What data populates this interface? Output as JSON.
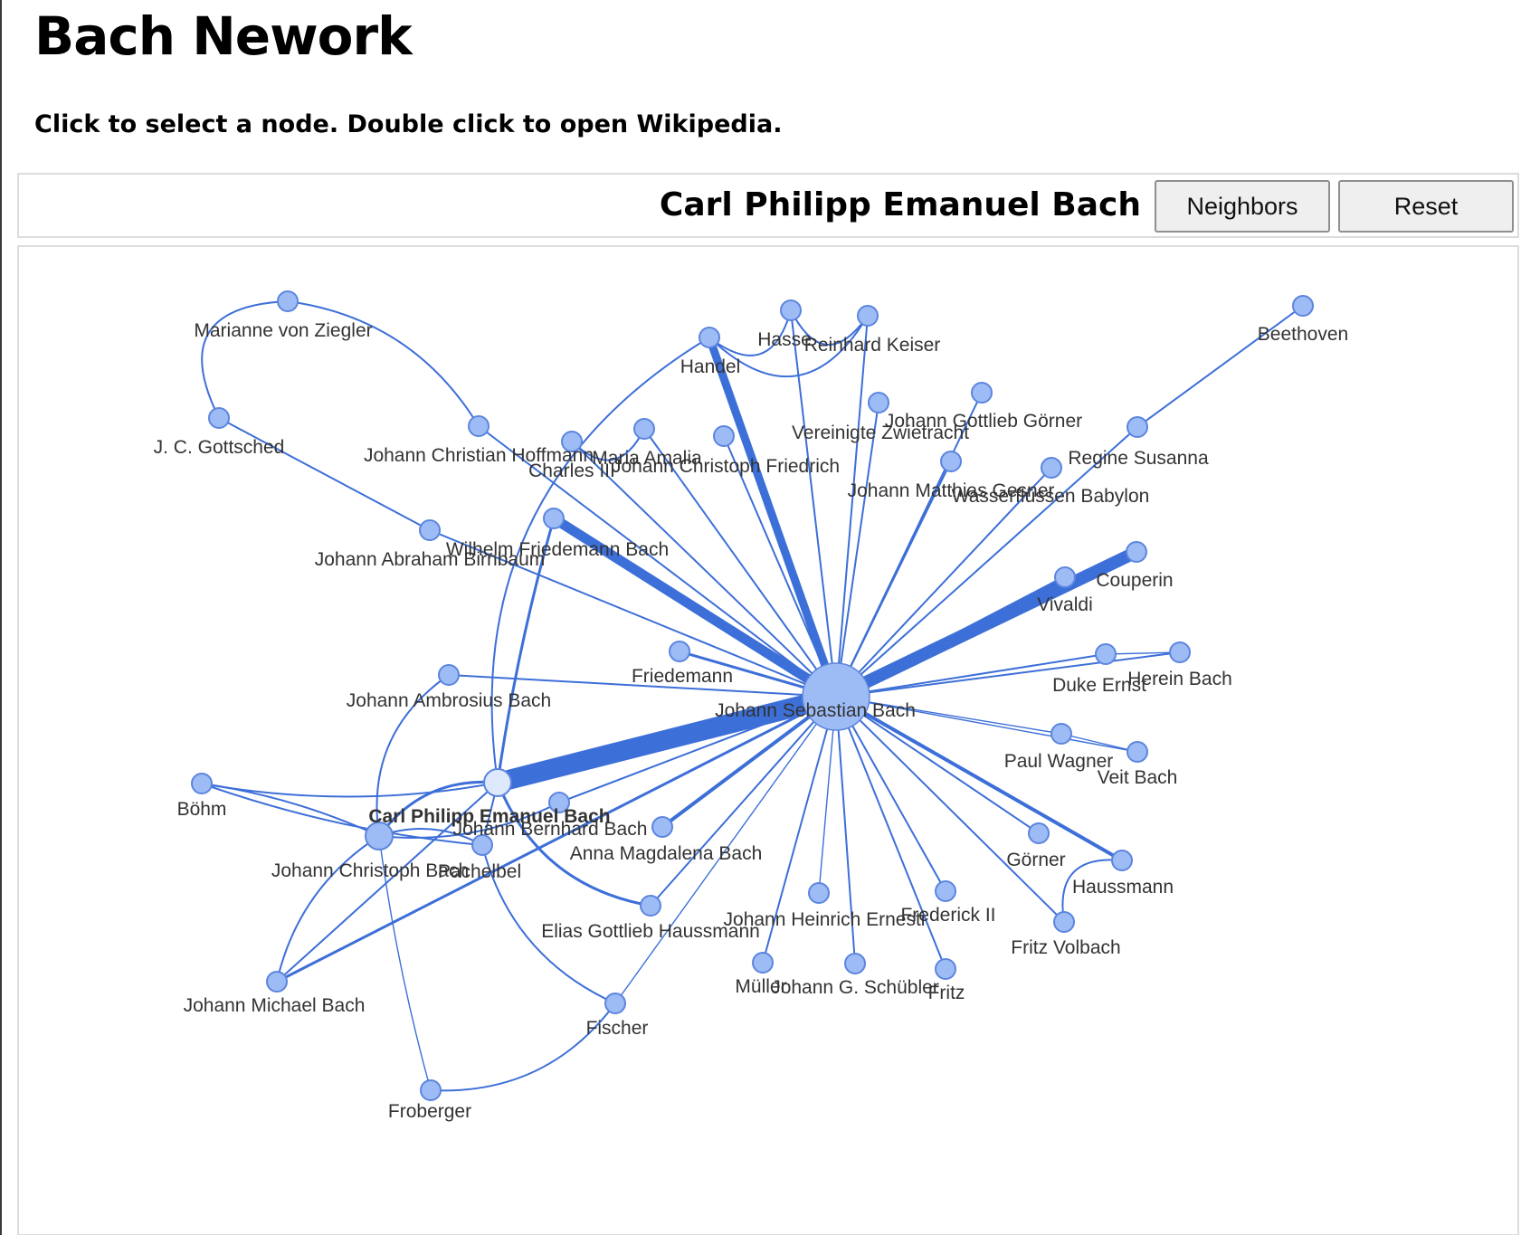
{
  "page": {
    "title": "Bach Nework",
    "instructions": "Click to select a node. Double click to open Wikipedia."
  },
  "toolbar": {
    "selected_label": "Carl Philipp Emanuel Bach",
    "neighbors_label": "Neighbors",
    "reset_label": "Reset"
  },
  "colors": {
    "edge": "#3d6fd8",
    "node_fill": "#9dbcf5",
    "node_stroke": "#5c85de",
    "selected_fill": "#dde8fc",
    "label": "#333333"
  },
  "graph": {
    "selected": "Carl Philipp Emanuel Bach",
    "nodes": [
      {
        "id": "jsb",
        "label": "Johann Sebastian Bach",
        "size": "large"
      },
      {
        "id": "cpe",
        "label": "Carl Philipp Emanuel Bach",
        "size": "medium",
        "selected": true
      },
      {
        "id": "jcb",
        "label": "Johann Christoph Bach",
        "size": "medium"
      },
      {
        "id": "ziegler",
        "label": "Marianne von Ziegler"
      },
      {
        "id": "gottsched",
        "label": "J. C. Gottsched"
      },
      {
        "id": "hoffmann",
        "label": "Johann Christian Hoffmann"
      },
      {
        "id": "birnbaum",
        "label": "Johann Abraham Birnbaum"
      },
      {
        "id": "wfb",
        "label": "Wilhelm Friedemann Bach"
      },
      {
        "id": "charles",
        "label": "Charles III"
      },
      {
        "id": "amalia",
        "label": "Maria Amalia"
      },
      {
        "id": "jcf",
        "label": "Johann Christoph Friedrich"
      },
      {
        "id": "handel",
        "label": "Handel"
      },
      {
        "id": "hasse",
        "label": "Hasse"
      },
      {
        "id": "keiser",
        "label": "Reinhard Keiser"
      },
      {
        "id": "vereinigte",
        "label": "Vereinigte Zwietracht"
      },
      {
        "id": "gorner_jg",
        "label": "Johann Gottlieb Görner"
      },
      {
        "id": "gesner",
        "label": "Johann Matthias Gesner"
      },
      {
        "id": "babylon",
        "label": "Wasserflüssen Babylon"
      },
      {
        "id": "regine",
        "label": "Regine Susanna"
      },
      {
        "id": "beethoven",
        "label": "Beethoven"
      },
      {
        "id": "couperin",
        "label": "Couperin"
      },
      {
        "id": "vivaldi",
        "label": "Vivaldi"
      },
      {
        "id": "friedemann",
        "label": "Friedemann"
      },
      {
        "id": "duke",
        "label": "Duke Ernst"
      },
      {
        "id": "herein",
        "label": "Herein Bach"
      },
      {
        "id": "paul",
        "label": "Paul Wagner"
      },
      {
        "id": "veit",
        "label": "Veit Bach"
      },
      {
        "id": "ambrosius",
        "label": "Johann Ambrosius Bach"
      },
      {
        "id": "bohm",
        "label": "Böhm"
      },
      {
        "id": "jbb",
        "label": "Johann Bernhard Bach"
      },
      {
        "id": "anna",
        "label": "Anna Magdalena Bach"
      },
      {
        "id": "pachelbel",
        "label": "Pachelbel"
      },
      {
        "id": "egh",
        "label": "Elias Gottlieb Haussmann"
      },
      {
        "id": "ernesti",
        "label": "Johann Heinrich Ernesti"
      },
      {
        "id": "frederick",
        "label": "Frederick II"
      },
      {
        "id": "gorner",
        "label": "Görner"
      },
      {
        "id": "haussmann",
        "label": "Haussmann"
      },
      {
        "id": "volbach",
        "label": "Fritz Volbach"
      },
      {
        "id": "muller",
        "label": "Müller"
      },
      {
        "id": "schubler",
        "label": "Johann G. Schübler"
      },
      {
        "id": "fritz",
        "label": "Fritz"
      },
      {
        "id": "jmb",
        "label": "Johann Michael Bach"
      },
      {
        "id": "fischer",
        "label": "Fischer"
      },
      {
        "id": "froberger",
        "label": "Froberger"
      }
    ],
    "edges": [
      {
        "from": "jsb",
        "to": "cpe",
        "weight": 22
      },
      {
        "from": "jsb",
        "to": "couperin",
        "weight": 14
      },
      {
        "from": "jsb",
        "to": "wfb",
        "weight": 11
      },
      {
        "from": "jsb",
        "to": "handel",
        "weight": 9
      },
      {
        "from": "jsb",
        "to": "vivaldi",
        "weight": 4
      },
      {
        "from": "jsb",
        "to": "haussmann",
        "weight": 4
      },
      {
        "from": "jsb",
        "to": "anna",
        "weight": 4
      },
      {
        "from": "jsb",
        "to": "friedemann",
        "weight": 3
      },
      {
        "from": "jsb",
        "to": "jcf",
        "weight": 2
      },
      {
        "from": "jsb",
        "to": "hasse",
        "weight": 2
      },
      {
        "from": "jsb",
        "to": "keiser",
        "weight": 2
      },
      {
        "from": "jsb",
        "to": "vereinigte",
        "weight": 2
      },
      {
        "from": "jsb",
        "to": "gorner_jg",
        "weight": 2
      },
      {
        "from": "jsb",
        "to": "gesner",
        "weight": 2
      },
      {
        "from": "jsb",
        "to": "babylon",
        "weight": 2
      },
      {
        "from": "jsb",
        "to": "regine",
        "weight": 2
      },
      {
        "from": "jsb",
        "to": "duke",
        "weight": 2
      },
      {
        "from": "jsb",
        "to": "herein",
        "weight": 2
      },
      {
        "from": "jsb",
        "to": "paul",
        "weight": 1
      },
      {
        "from": "jsb",
        "to": "veit",
        "weight": 1
      },
      {
        "from": "jsb",
        "to": "gorner",
        "weight": 2
      },
      {
        "from": "jsb",
        "to": "volbach",
        "weight": 2
      },
      {
        "from": "jsb",
        "to": "frederick",
        "weight": 2
      },
      {
        "from": "jsb",
        "to": "fritz",
        "weight": 2
      },
      {
        "from": "jsb",
        "to": "schubler",
        "weight": 2
      },
      {
        "from": "jsb",
        "to": "ernesti",
        "weight": 1
      },
      {
        "from": "jsb",
        "to": "muller",
        "weight": 2
      },
      {
        "from": "jsb",
        "to": "egh",
        "weight": 2
      },
      {
        "from": "jsb",
        "to": "jbb",
        "weight": 2
      },
      {
        "from": "jsb",
        "to": "ambrosius",
        "weight": 2
      },
      {
        "from": "jsb",
        "to": "birnbaum",
        "weight": 2
      },
      {
        "from": "jsb",
        "to": "hoffmann",
        "weight": 2
      },
      {
        "from": "jsb",
        "to": "amalia",
        "weight": 2
      },
      {
        "from": "jsb",
        "to": "charles",
        "weight": 2
      },
      {
        "from": "jsb",
        "to": "jmb",
        "weight": 3
      },
      {
        "from": "jsb",
        "to": "fischer",
        "weight": 1
      },
      {
        "from": "ziegler",
        "to": "gottsched",
        "weight": 2
      },
      {
        "from": "ziegler",
        "to": "hoffmann",
        "weight": 2
      },
      {
        "from": "gottsched",
        "to": "birnbaum",
        "weight": 2
      },
      {
        "from": "charles",
        "to": "amalia",
        "weight": 2
      },
      {
        "from": "handel",
        "to": "hasse",
        "weight": 2
      },
      {
        "from": "handel",
        "to": "keiser",
        "weight": 2
      },
      {
        "from": "hasse",
        "to": "keiser",
        "weight": 2
      },
      {
        "from": "regine",
        "to": "beethoven",
        "weight": 2
      },
      {
        "from": "duke",
        "to": "herein",
        "weight": 1
      },
      {
        "from": "paul",
        "to": "veit",
        "weight": 1
      },
      {
        "from": "haussmann",
        "to": "volbach",
        "weight": 2
      },
      {
        "from": "handel",
        "to": "cpe",
        "weight": 2
      },
      {
        "from": "wfb",
        "to": "cpe",
        "weight": 3
      },
      {
        "from": "cpe",
        "to": "jcb",
        "weight": 3
      },
      {
        "from": "cpe",
        "to": "pachelbel",
        "weight": 2
      },
      {
        "from": "cpe",
        "to": "egh",
        "weight": 3
      },
      {
        "from": "cpe",
        "to": "jmb",
        "weight": 2
      },
      {
        "from": "cpe",
        "to": "bohm",
        "weight": 2
      },
      {
        "from": "ambrosius",
        "to": "jcb",
        "weight": 2
      },
      {
        "from": "bohm",
        "to": "jcb",
        "weight": 2
      },
      {
        "from": "bohm",
        "to": "pachelbel",
        "weight": 2
      },
      {
        "from": "jcb",
        "to": "pachelbel",
        "weight": 2
      },
      {
        "from": "jcb",
        "to": "jmb",
        "weight": 2
      },
      {
        "from": "jcb",
        "to": "froberger",
        "weight": 1
      },
      {
        "from": "pachelbel",
        "to": "fischer",
        "weight": 2
      },
      {
        "from": "fischer",
        "to": "froberger",
        "weight": 2
      },
      {
        "from": "jbb",
        "to": "jcb",
        "weight": 2
      }
    ]
  }
}
